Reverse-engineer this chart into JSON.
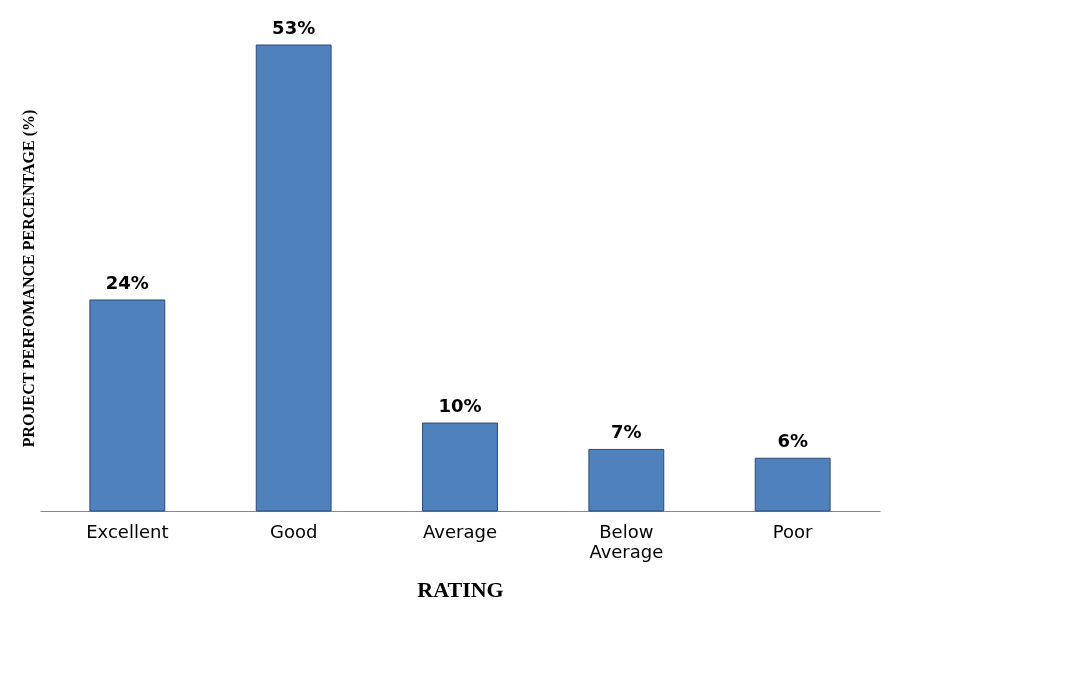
{
  "chart_data": {
    "type": "bar",
    "xlabel": "RATING",
    "ylabel": "PROJECT PERFOMANCE PERCENTAGE (%)",
    "categories": [
      "Excellent",
      "Good",
      "Average",
      "Below Average",
      "Poor"
    ],
    "values": [
      24,
      53,
      10,
      7,
      6
    ],
    "value_labels": [
      "24%",
      "53%",
      "10%",
      "7%",
      "6%"
    ],
    "color": "#4f81bd",
    "grid": false
  }
}
